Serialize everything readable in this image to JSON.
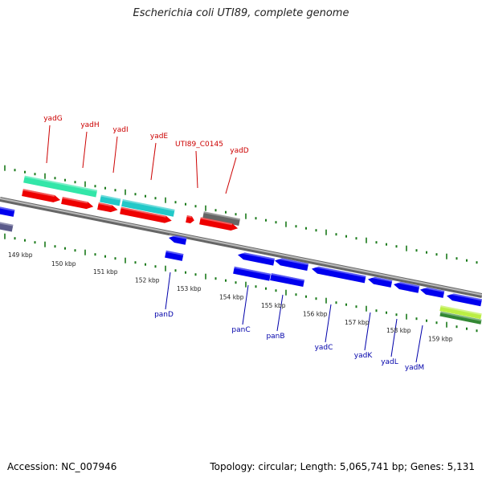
{
  "header": {
    "title": "Escherichia coli UTI89, complete genome"
  },
  "footer": {
    "accession": "Accession: NC_007946",
    "summary": "Topology: circular; Length: 5,065,741 bp; Genes: 5,131"
  },
  "colors": {
    "label_forward": "#cc0000",
    "label_reverse": "#0000aa",
    "backbone": "#888888",
    "tick": "#1a7a1a",
    "cds_red": "#ee0000",
    "cds_blue": "#0000ee",
    "rna_cyan": "#22c8c8",
    "rna_green": "#33e6a8",
    "pseudo_grey": "#666666",
    "other_purple": "#5a5a8a",
    "other_lime": "#bbee44",
    "other_darkgreen": "#338833"
  },
  "scale": {
    "ticks": [
      {
        "label": "149 kbp"
      },
      {
        "label": "150 kbp"
      },
      {
        "label": "151 kbp"
      },
      {
        "label": "152 kbp"
      },
      {
        "label": "153 kbp"
      },
      {
        "label": "154 kbp"
      },
      {
        "label": "155 kbp"
      },
      {
        "label": "156 kbp"
      },
      {
        "label": "157 kbp"
      },
      {
        "label": "158 kbp"
      },
      {
        "label": "159 kbp"
      }
    ]
  },
  "genes_forward": [
    {
      "label": "yadG"
    },
    {
      "label": "yadH"
    },
    {
      "label": "yadI"
    },
    {
      "label": "yadE"
    },
    {
      "label": "UTI89_C0145"
    },
    {
      "label": "yadD"
    }
  ],
  "genes_reverse": [
    {
      "label": "panD"
    },
    {
      "label": "panC"
    },
    {
      "label": "panB"
    },
    {
      "label": "yadC"
    },
    {
      "label": "yadK"
    },
    {
      "label": "yadL"
    },
    {
      "label": "yadM"
    }
  ]
}
